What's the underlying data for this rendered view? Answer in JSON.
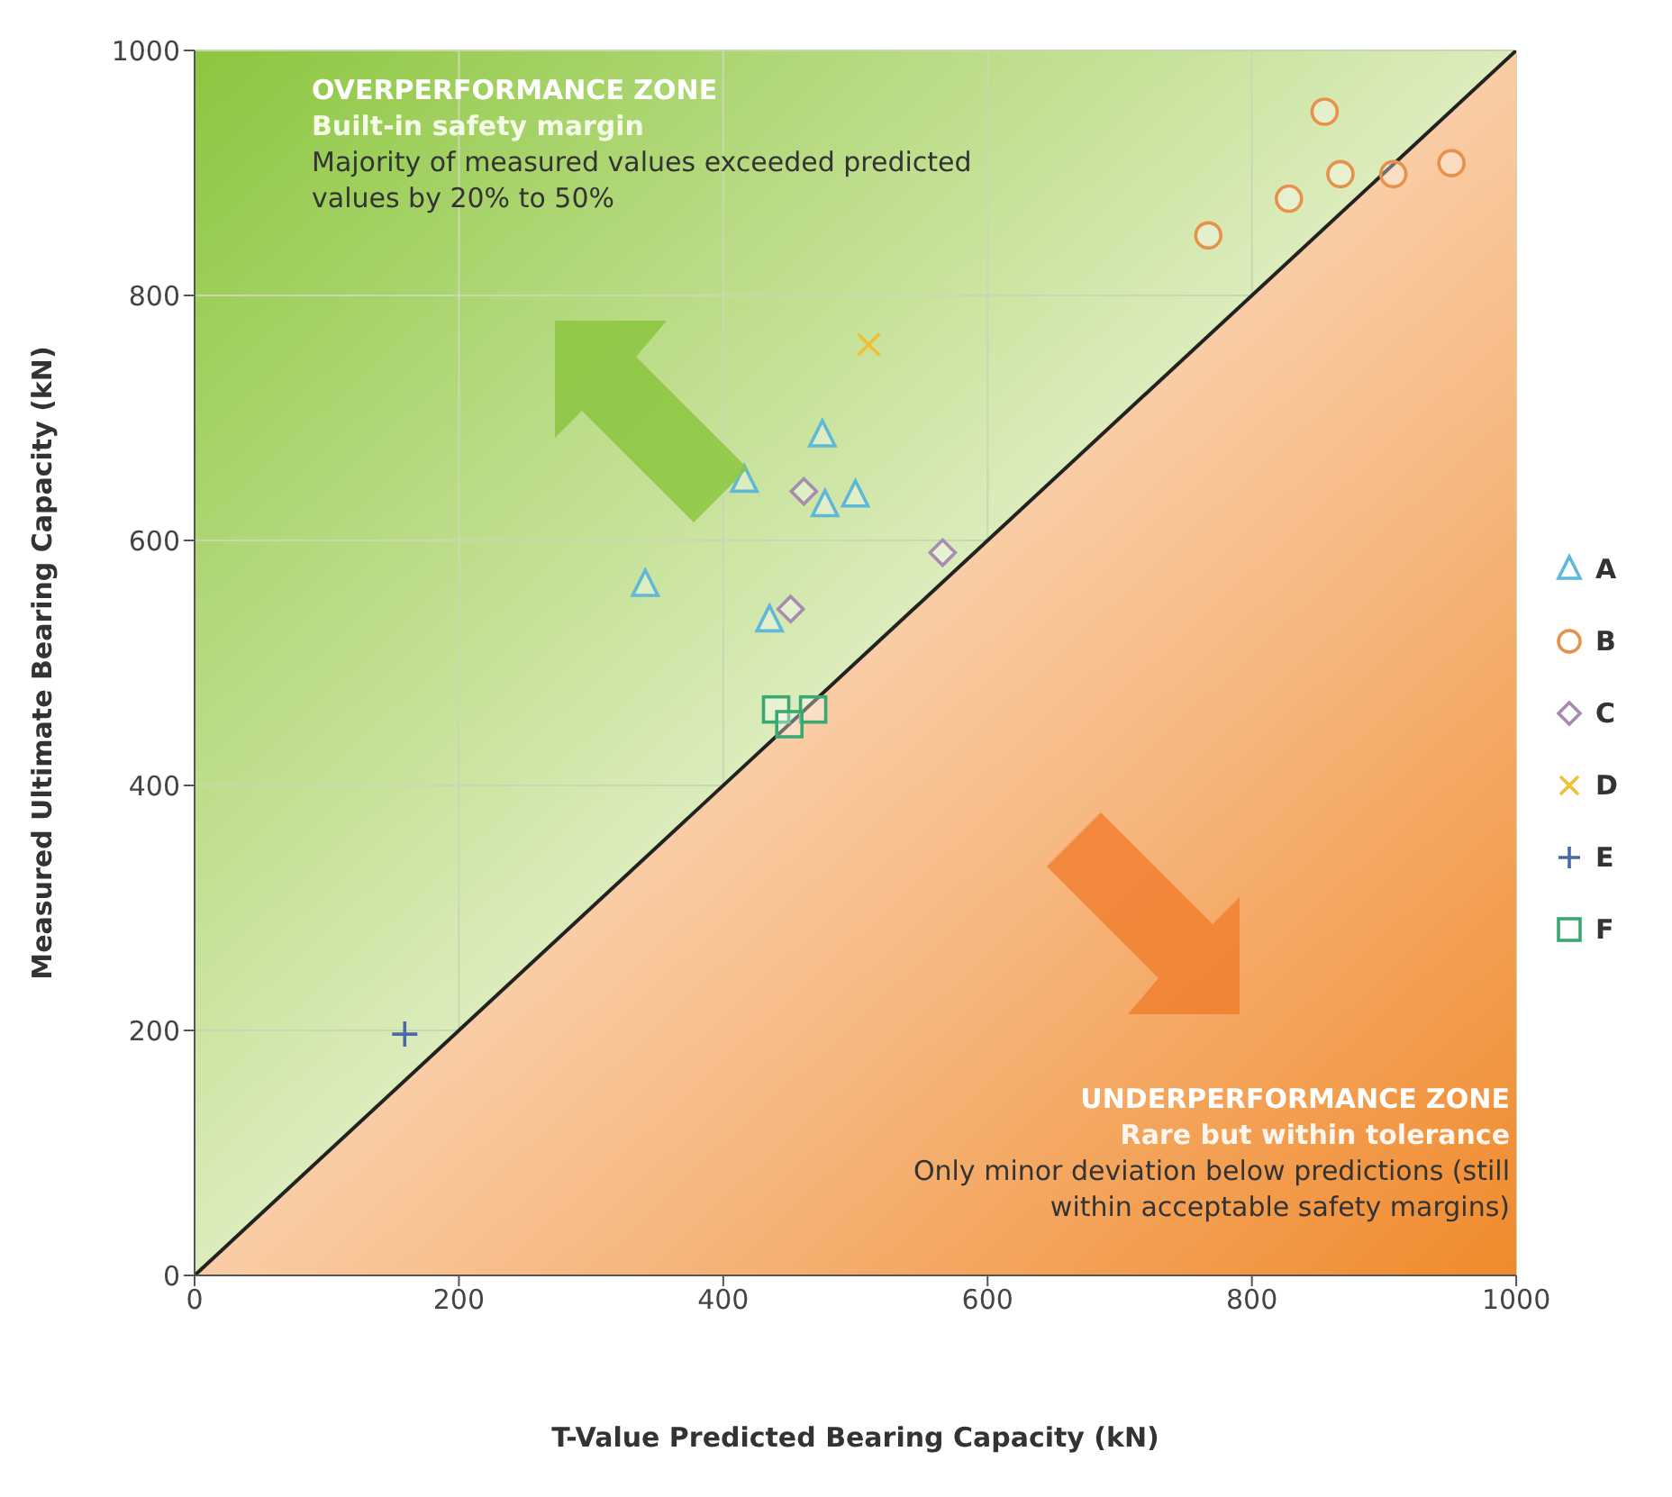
{
  "chart_data": {
    "type": "scatter",
    "xlabel": "T-Value Predicted Bearing Capacity (kN)",
    "ylabel": "Measured Ultimate Bearing Capacity (kN)",
    "xlim": [
      0,
      1000
    ],
    "ylim": [
      0,
      1000
    ],
    "xticks": [
      0,
      200,
      400,
      600,
      800,
      1000
    ],
    "yticks": [
      0,
      200,
      400,
      600,
      800,
      1000
    ],
    "grid": true,
    "legend": "right",
    "annotations": [
      "OVERPERFORMANCE ZONE",
      "Built-in safety margin",
      "Majority of measured values exceeded predicted values by 20% to 50%",
      "UNDERPERFORMANCE ZONE",
      "Rare but within tolerance",
      "Only minor deviation below predictions (still within acceptable safety margins)"
    ],
    "series": [
      {
        "type": "area",
        "color": "#222222",
        "x": [
          0,
          1000
        ],
        "values": [
          0,
          1000
        ]
      },
      {
        "name": "A",
        "color": "#5fb8d8",
        "marker": "triangle",
        "x": [
          341,
          416,
          475,
          435,
          477,
          500
        ],
        "values": [
          564,
          649,
          686,
          535,
          629,
          637
        ]
      },
      {
        "name": "B",
        "color": "#e8914a",
        "marker": "circle",
        "x": [
          767,
          855,
          828,
          867,
          907,
          951
        ],
        "values": [
          849,
          950,
          879,
          899,
          899,
          908
        ]
      },
      {
        "name": "C",
        "color": "#a58cb0",
        "marker": "diamond",
        "x": [
          461,
          451,
          566
        ],
        "values": [
          640,
          544,
          590
        ]
      },
      {
        "name": "D",
        "color": "#f0c030",
        "marker": "cross",
        "x": [
          510
        ],
        "values": [
          760
        ]
      },
      {
        "name": "E",
        "color": "#4a6aa8",
        "marker": "plus",
        "x": [
          159
        ],
        "values": [
          197
        ]
      },
      {
        "name": "F",
        "color": "#3aa870",
        "marker": "square",
        "x": [
          440,
          468,
          450
        ],
        "values": [
          462,
          462,
          450
        ]
      }
    ]
  }
}
